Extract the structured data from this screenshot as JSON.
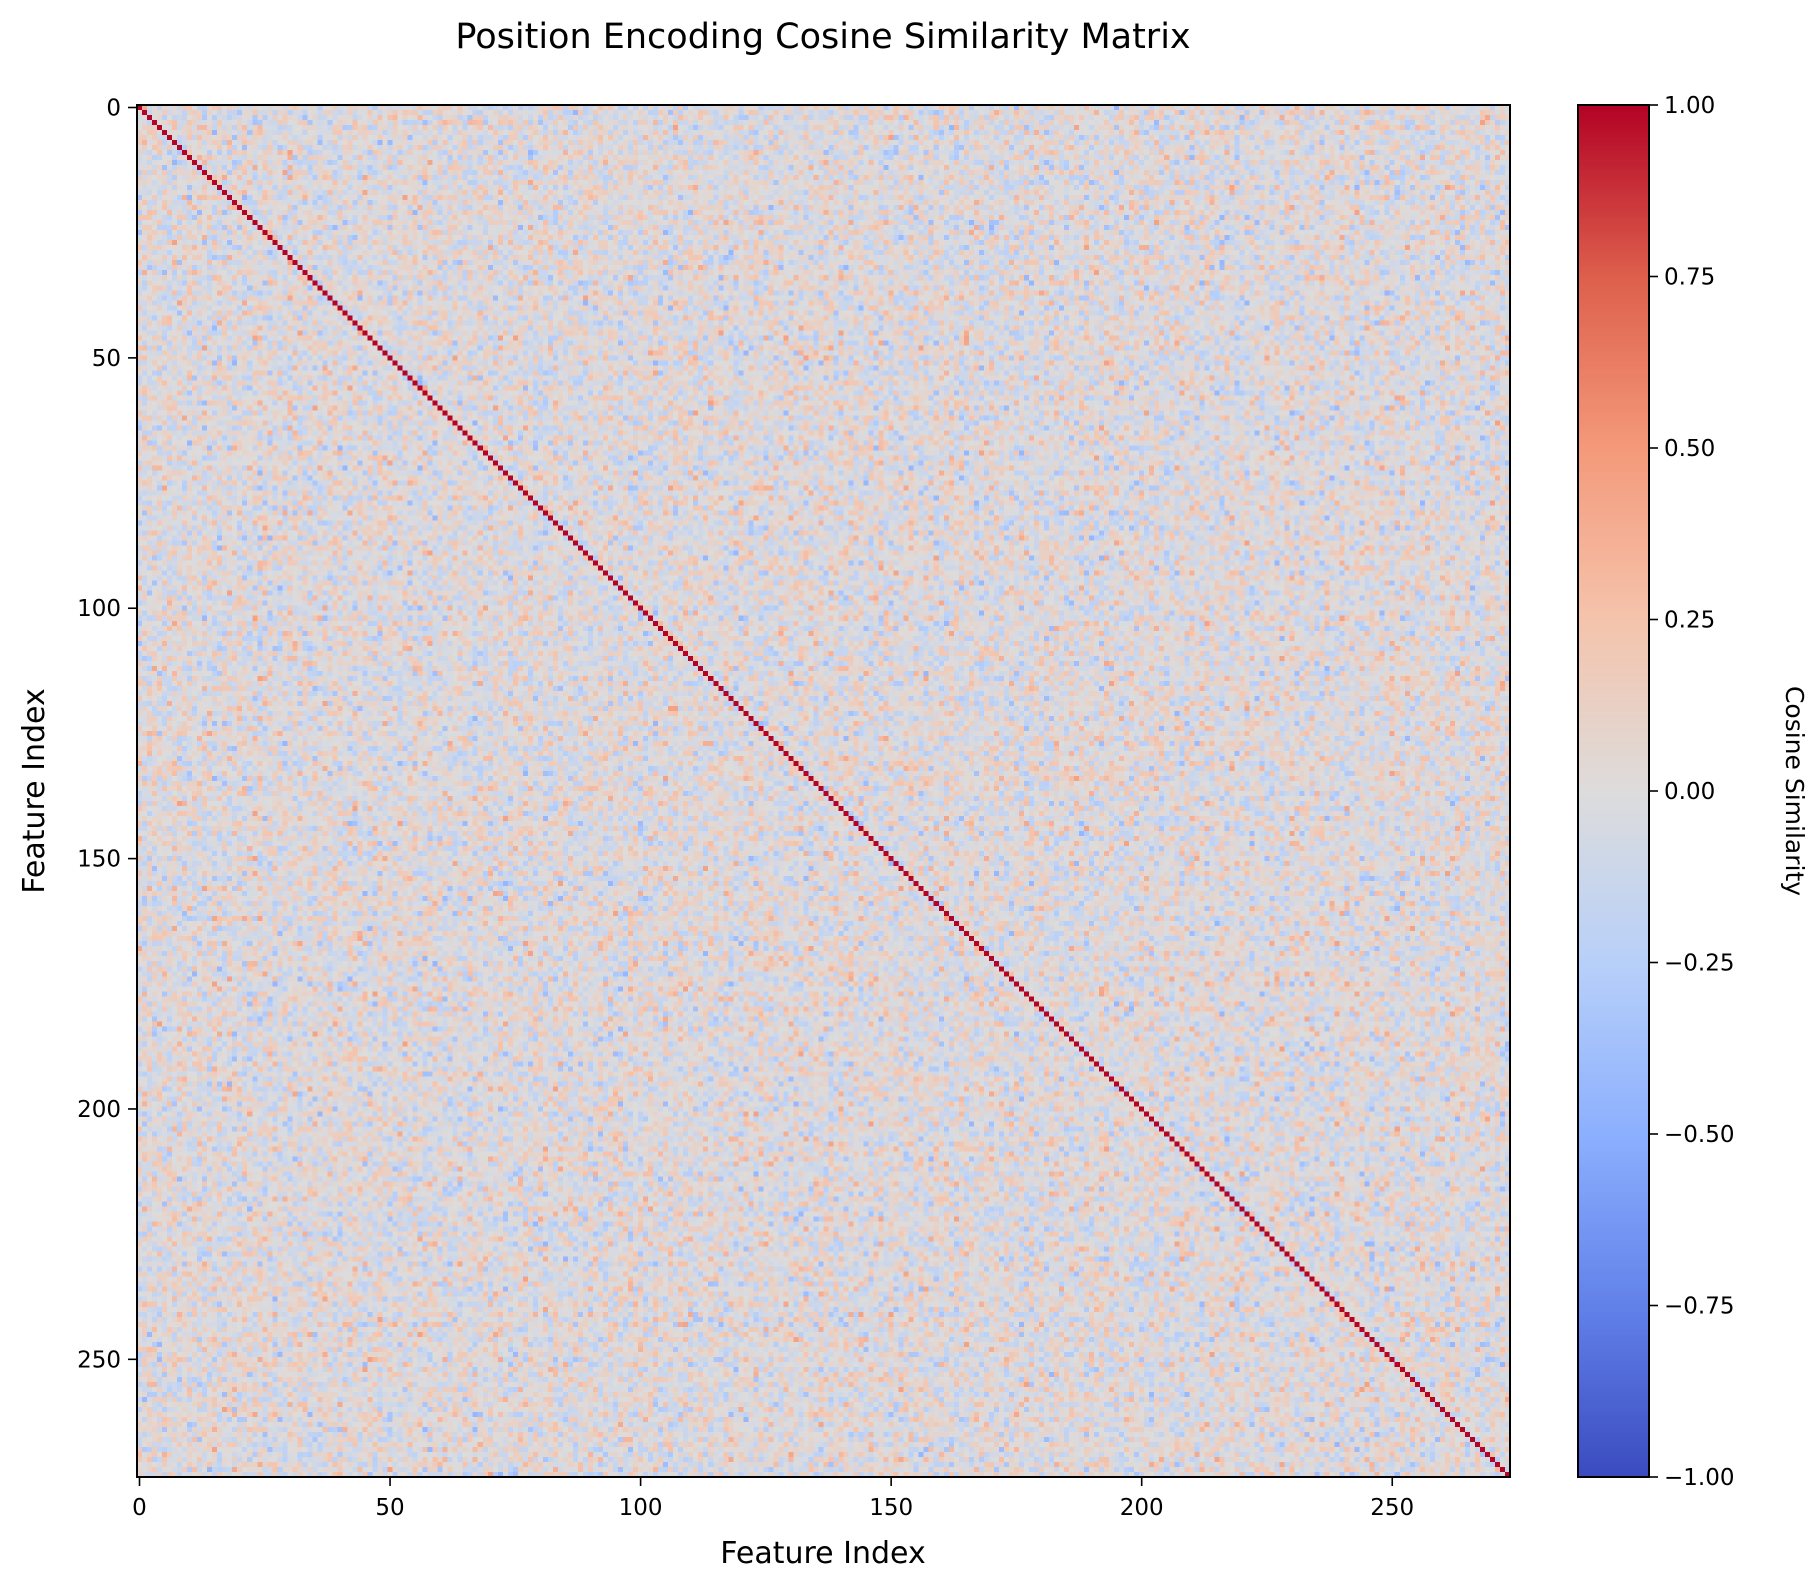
{
  "chart_data": {
    "type": "heatmap",
    "title": "Position Encoding Cosine Similarity Matrix",
    "xlabel": "Feature Index",
    "ylabel": "Feature Index",
    "matrix_size": 274,
    "x_range": [
      0,
      273
    ],
    "y_range": [
      0,
      273
    ],
    "y_axis_inverted": true,
    "x_ticks": [
      0,
      50,
      100,
      150,
      200,
      250
    ],
    "y_ticks": [
      0,
      50,
      100,
      150,
      200,
      250
    ],
    "diagonal_value": 1.0,
    "off_diagonal": {
      "distribution": "random",
      "approx_mean": 0.0,
      "approx_std": 0.15,
      "approx_range": [
        -0.45,
        0.45
      ]
    },
    "colormap": "coolwarm",
    "colorbar": {
      "label": "Cosine Similarity",
      "range": [
        -1.0,
        1.0
      ],
      "ticks": [
        1.0,
        0.75,
        0.5,
        0.25,
        0.0,
        -0.25,
        -0.5,
        -0.75,
        -1.0
      ],
      "tick_labels": [
        "1.00",
        "0.75",
        "0.50",
        "0.25",
        "0.00",
        "−0.25",
        "−0.50",
        "−0.75",
        "−1.00"
      ]
    },
    "grid": false,
    "colors": {
      "low": "#3b4cc0",
      "mid": "#dddcdc",
      "high": "#b40426"
    }
  }
}
